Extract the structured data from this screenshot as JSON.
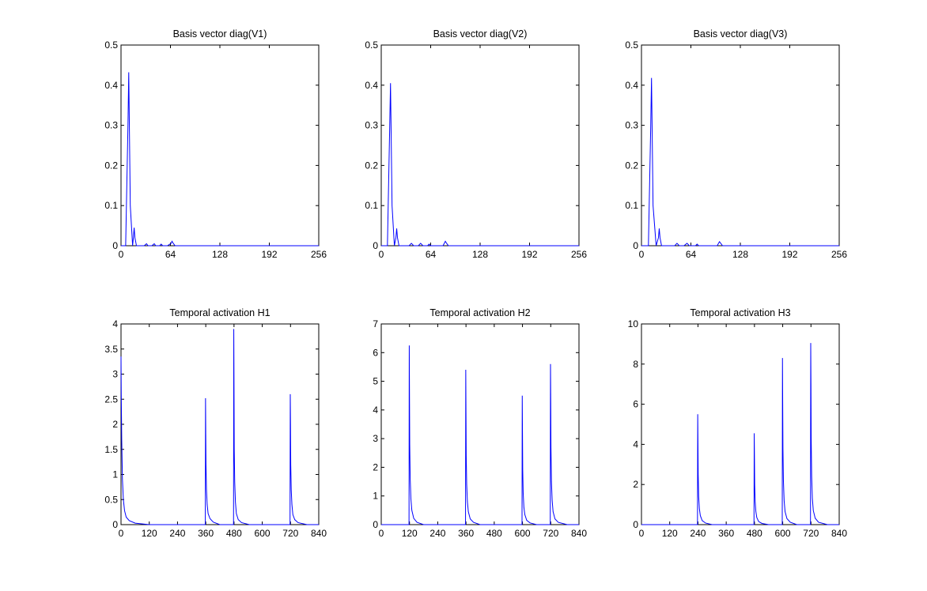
{
  "chart_data": [
    {
      "type": "line",
      "title": "Basis vector diag(V1)",
      "xlim": [
        0,
        256
      ],
      "ylim": [
        0,
        0.5
      ],
      "xticks": [
        0,
        64,
        128,
        192,
        256
      ],
      "yticks": [
        0,
        0.1,
        0.2,
        0.3,
        0.4,
        0.5
      ],
      "grid": false,
      "series": [
        {
          "color": "#0000ff",
          "x": [
            0,
            6,
            9,
            10,
            12,
            15,
            16,
            17,
            18,
            20,
            25,
            30,
            33,
            35,
            40,
            43,
            45,
            50,
            52,
            54,
            60,
            65,
            66,
            68,
            70,
            256
          ],
          "y": [
            0,
            0,
            0.3,
            0.432,
            0.1,
            0,
            0.02,
            0.045,
            0.02,
            0,
            0,
            0,
            0.005,
            0,
            0,
            0.005,
            0,
            0,
            0.004,
            0,
            0,
            0.006,
            0.011,
            0.005,
            0,
            0
          ]
        }
      ]
    },
    {
      "type": "line",
      "title": "Basis vector diag(V2)",
      "xlim": [
        0,
        256
      ],
      "ylim": [
        0,
        0.5
      ],
      "xticks": [
        0,
        64,
        128,
        192,
        256
      ],
      "yticks": [
        0,
        0.1,
        0.2,
        0.3,
        0.4,
        0.5
      ],
      "grid": false,
      "series": [
        {
          "color": "#0000ff",
          "x": [
            0,
            8,
            11,
            12,
            14,
            17,
            19,
            20,
            21,
            23,
            36,
            39,
            42,
            48,
            51,
            54,
            60,
            62,
            64,
            80,
            83,
            85,
            87,
            256
          ],
          "y": [
            0,
            0,
            0.3,
            0.405,
            0.1,
            0,
            0.02,
            0.043,
            0.02,
            0,
            0,
            0.006,
            0,
            0,
            0.006,
            0,
            0,
            0.004,
            0,
            0,
            0.011,
            0.005,
            0,
            0
          ]
        }
      ]
    },
    {
      "type": "line",
      "title": "Basis vector diag(V3)",
      "xlim": [
        0,
        256
      ],
      "ylim": [
        0,
        0.5
      ],
      "xticks": [
        0,
        64,
        128,
        192,
        256
      ],
      "yticks": [
        0,
        0.1,
        0.2,
        0.3,
        0.4,
        0.5
      ],
      "grid": false,
      "series": [
        {
          "color": "#0000ff",
          "x": [
            0,
            9,
            12,
            13,
            15,
            19,
            22,
            23,
            24,
            26,
            43,
            46,
            49,
            55,
            59,
            62,
            70,
            72,
            74,
            98,
            101,
            103,
            105,
            256
          ],
          "y": [
            0,
            0,
            0.3,
            0.418,
            0.1,
            0,
            0.02,
            0.043,
            0.02,
            0,
            0,
            0.006,
            0,
            0,
            0.006,
            0,
            0,
            0.004,
            0,
            0,
            0.01,
            0.005,
            0,
            0
          ]
        }
      ]
    },
    {
      "type": "line",
      "title": "Temporal activation H1",
      "xlim": [
        0,
        840
      ],
      "ylim": [
        0,
        4
      ],
      "xticks": [
        0,
        120,
        240,
        360,
        480,
        600,
        720,
        840
      ],
      "yticks": [
        0,
        0.5,
        1,
        1.5,
        2,
        2.5,
        3,
        3.5,
        4
      ],
      "grid": false,
      "series": [
        {
          "color": "#0000ff",
          "x": [
            0,
            1,
            3,
            6,
            10,
            15,
            22,
            35,
            60,
            120,
            358,
            359,
            360,
            361,
            363,
            366,
            370,
            378,
            392,
            420,
            478,
            479,
            480,
            481,
            483,
            486,
            490,
            498,
            512,
            545,
            718,
            719,
            720,
            721,
            723,
            726,
            730,
            738,
            752,
            790,
            840
          ],
          "y": [
            3.35,
            2.6,
            1.7,
            0.9,
            0.5,
            0.28,
            0.15,
            0.08,
            0.03,
            0,
            0,
            2.52,
            1.8,
            1.2,
            0.7,
            0.4,
            0.22,
            0.12,
            0.05,
            0,
            0,
            3.9,
            2.7,
            1.5,
            0.85,
            0.45,
            0.22,
            0.1,
            0.04,
            0,
            0,
            2.6,
            2.0,
            1.2,
            0.7,
            0.4,
            0.2,
            0.1,
            0.04,
            0,
            0
          ]
        }
      ]
    },
    {
      "type": "line",
      "title": "Temporal activation H2",
      "xlim": [
        0,
        840
      ],
      "ylim": [
        0,
        7
      ],
      "xticks": [
        0,
        120,
        240,
        360,
        480,
        600,
        720,
        840
      ],
      "yticks": [
        0,
        1,
        2,
        3,
        4,
        5,
        6,
        7
      ],
      "grid": false,
      "series": [
        {
          "color": "#0000ff",
          "x": [
            0,
            118,
            119,
            120,
            121,
            123,
            126,
            130,
            138,
            152,
            180,
            358,
            359,
            360,
            361,
            363,
            366,
            370,
            378,
            392,
            420,
            598,
            599,
            600,
            601,
            603,
            606,
            610,
            618,
            632,
            660,
            718,
            719,
            720,
            721,
            723,
            726,
            730,
            738,
            752,
            790,
            840
          ],
          "y": [
            0,
            0,
            6.25,
            4.5,
            2.8,
            1.6,
            0.9,
            0.5,
            0.22,
            0.08,
            0,
            0,
            5.4,
            3.9,
            2.4,
            1.4,
            0.8,
            0.45,
            0.2,
            0.08,
            0,
            0,
            4.5,
            3.2,
            1.9,
            1.1,
            0.6,
            0.35,
            0.15,
            0.06,
            0,
            0,
            5.6,
            4.3,
            2.7,
            1.5,
            0.85,
            0.45,
            0.2,
            0.08,
            0,
            0
          ]
        }
      ]
    },
    {
      "type": "line",
      "title": "Temporal activation H3",
      "xlim": [
        0,
        840
      ],
      "ylim": [
        0,
        10
      ],
      "xticks": [
        0,
        120,
        240,
        360,
        480,
        600,
        720,
        840
      ],
      "yticks": [
        0,
        2,
        4,
        6,
        8,
        10
      ],
      "grid": false,
      "series": [
        {
          "color": "#0000ff",
          "x": [
            0,
            238,
            239,
            240,
            241,
            243,
            246,
            250,
            258,
            272,
            300,
            478,
            479,
            480,
            481,
            483,
            486,
            490,
            498,
            512,
            540,
            598,
            599,
            600,
            601,
            603,
            606,
            610,
            618,
            632,
            660,
            718,
            719,
            720,
            721,
            723,
            726,
            730,
            738,
            752,
            790,
            840
          ],
          "y": [
            0,
            0,
            5.5,
            4.0,
            2.5,
            1.4,
            0.8,
            0.45,
            0.2,
            0.08,
            0,
            0,
            4.55,
            3.3,
            2.0,
            1.15,
            0.65,
            0.35,
            0.15,
            0.06,
            0,
            0,
            8.3,
            6.0,
            3.8,
            2.2,
            1.2,
            0.65,
            0.3,
            0.12,
            0,
            0,
            9.05,
            7.0,
            4.3,
            2.4,
            1.3,
            0.7,
            0.32,
            0.12,
            0,
            0
          ]
        }
      ]
    }
  ]
}
